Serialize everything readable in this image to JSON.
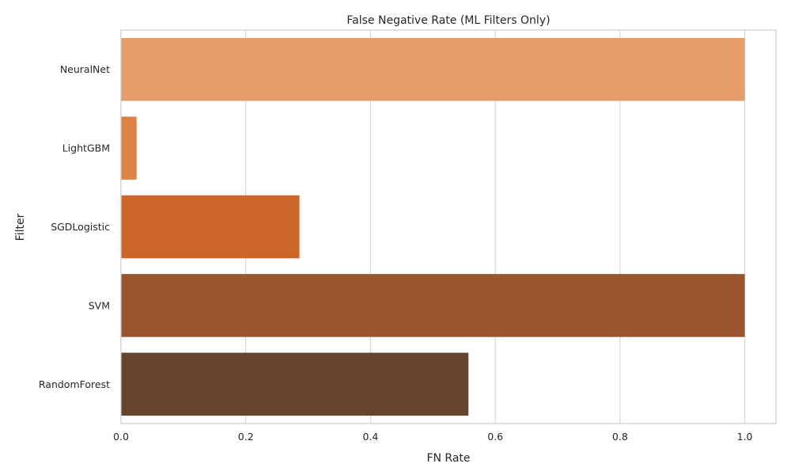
{
  "chart_data": {
    "type": "bar",
    "orientation": "horizontal",
    "title": "False Negative Rate (ML Filters Only)",
    "xlabel": "FN Rate",
    "ylabel": "Filter",
    "categories": [
      "NeuralNet",
      "LightGBM",
      "SGDLogistic",
      "SVM",
      "RandomForest"
    ],
    "values": [
      1.0,
      0.025,
      0.286,
      1.0,
      0.557
    ],
    "colors": [
      "#e59d6b",
      "#dc8247",
      "#cb6528",
      "#99562e",
      "#66442e"
    ],
    "xlim": [
      0,
      1.05
    ],
    "xticks": [
      0.0,
      0.2,
      0.4,
      0.6,
      0.8,
      1.0
    ],
    "xtick_labels": [
      "0.0",
      "0.2",
      "0.4",
      "0.6",
      "0.8",
      "1.0"
    ],
    "grid": "vertical"
  }
}
